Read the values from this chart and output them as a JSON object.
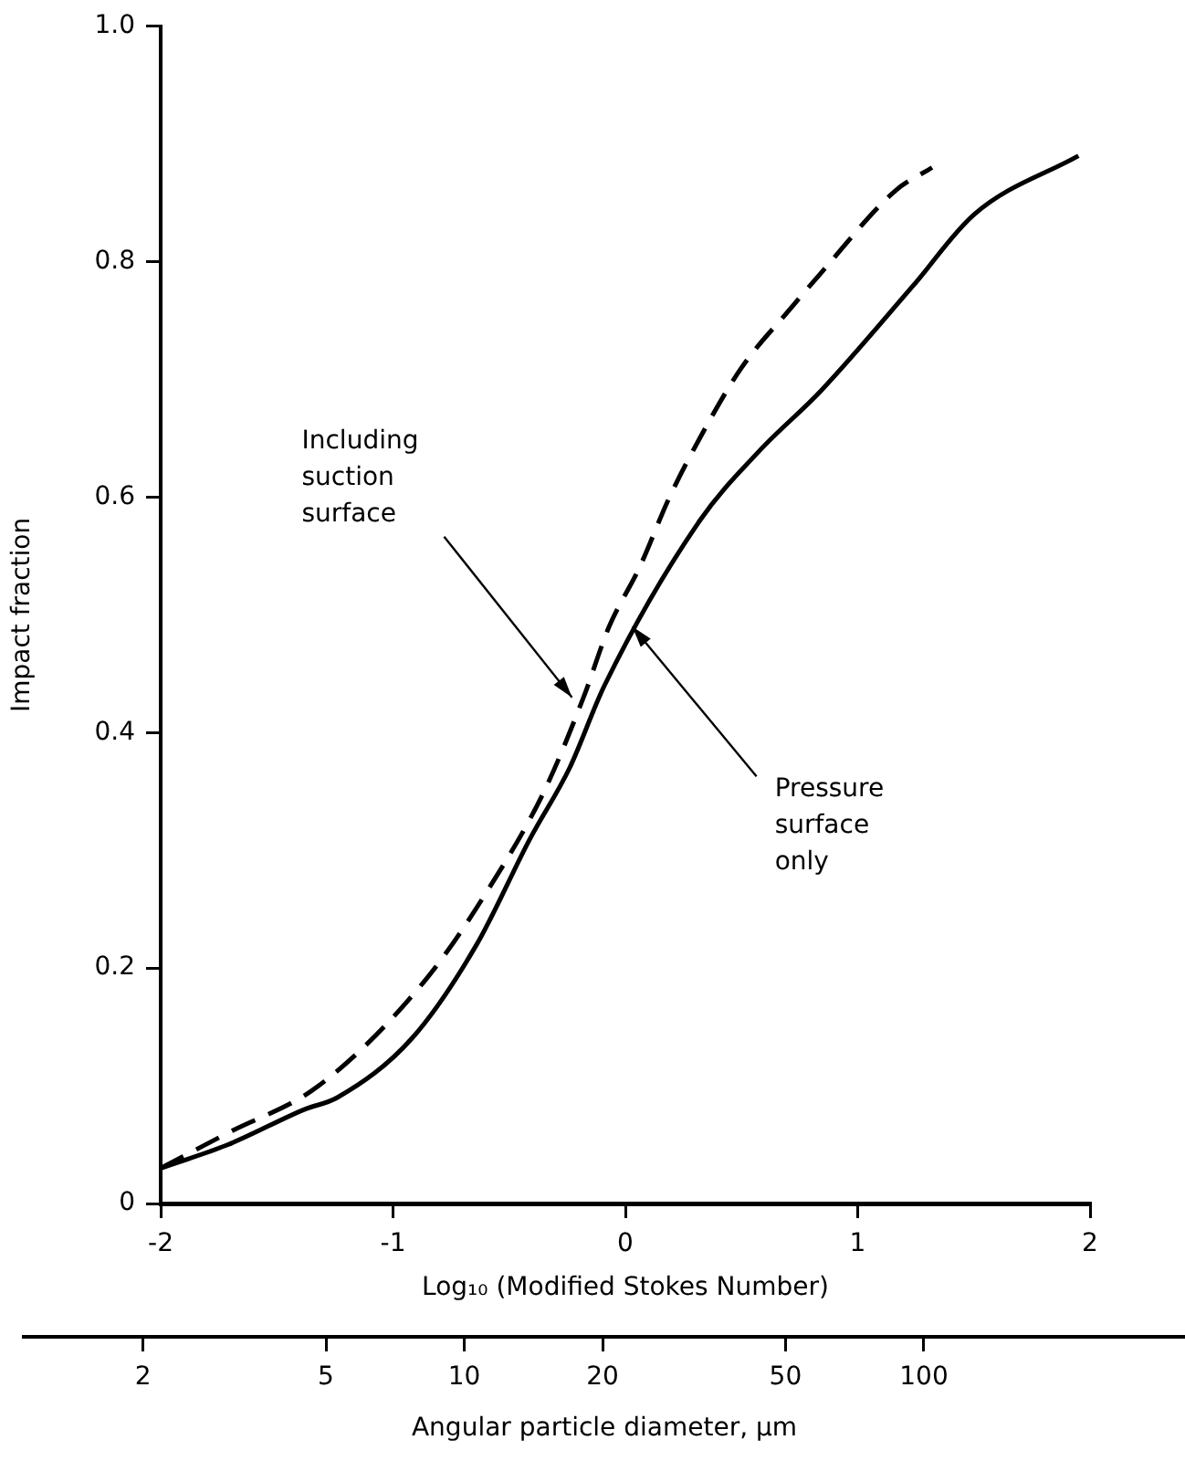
{
  "chart_data": {
    "type": "line",
    "xlabel": "Log₁₀ (Modified Stokes Number)",
    "ylabel": "Impact fraction",
    "x2label": "Angular particle diameter, µm",
    "xlim": [
      -2,
      2
    ],
    "xticks": [
      -2,
      -1,
      0,
      1,
      2
    ],
    "ylim": [
      0,
      1
    ],
    "yticks": [
      0,
      0.2,
      0.4,
      0.6,
      0.8,
      {
        "value": 1,
        "label": "1.0"
      }
    ],
    "x2lim": [
      1.1,
      370
    ],
    "x2ticks": [
      2,
      5,
      10,
      20,
      50,
      100
    ],
    "log": "x2",
    "grid": false,
    "legend": false,
    "marker": "none",
    "series": [
      {
        "color": "#000000",
        "line_style": "solid",
        "x": [
          -2,
          -1.71,
          -1.38,
          -1.24,
          -0.92,
          -0.64,
          -0.41,
          -0.24,
          -0.09,
          0.32,
          0.58,
          0.84,
          1.24,
          1.5,
          1.95
        ],
        "values": [
          0.03,
          0.05,
          0.08,
          0.09,
          0.14,
          0.22,
          0.31,
          0.37,
          0.44,
          0.58,
          0.64,
          0.69,
          0.78,
          0.84,
          0.89
        ]
      },
      {
        "color": "#000000",
        "line_style": "dashed",
        "x": [
          -2,
          -1.71,
          -1.32,
          -0.86,
          -0.58,
          -0.35,
          -0.18,
          -0.07,
          0.06,
          0.19,
          0.32,
          0.5,
          0.71,
          0.84,
          1.16,
          1.32
        ],
        "values": [
          0.03,
          0.06,
          0.1,
          0.19,
          0.27,
          0.35,
          0.43,
          0.49,
          0.54,
          0.6,
          0.65,
          0.71,
          0.76,
          0.79,
          0.86,
          0.88
        ]
      }
    ],
    "annotations": [
      {
        "text": "Including suction surface",
        "x": -0.23,
        "y": 0.43
      },
      {
        "text": "Pressure surface only",
        "x": 0.03,
        "y": 0.49
      }
    ]
  }
}
